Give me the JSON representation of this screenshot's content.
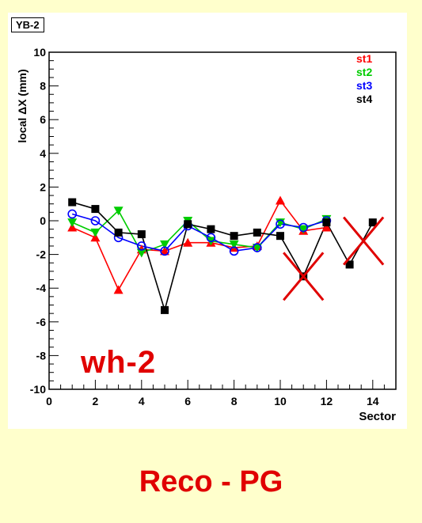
{
  "slide": {
    "caption": "Reco - PG",
    "annotation": "wh-2"
  },
  "chart_data": {
    "type": "line",
    "title": "YB-2",
    "xlabel": "Sector",
    "ylabel": "local ΔX (mm)",
    "xlim": [
      0,
      15
    ],
    "ylim": [
      -10,
      10
    ],
    "xticks": [
      0,
      2,
      4,
      6,
      8,
      10,
      12,
      14
    ],
    "yticks": [
      -10,
      -8,
      -6,
      -4,
      -2,
      0,
      2,
      4,
      6,
      8,
      10
    ],
    "legend_position": "top-right",
    "series": [
      {
        "name": "st1",
        "color": "#ff0000",
        "marker": "triangle-up",
        "marker_fill": true,
        "x": [
          1,
          2,
          3,
          4,
          5,
          6,
          7,
          8,
          9,
          10,
          11,
          12
        ],
        "y": [
          -0.4,
          -1.0,
          -4.1,
          -1.7,
          -1.8,
          -1.3,
          -1.3,
          -1.6,
          -1.5,
          1.2,
          -0.6,
          -0.4
        ]
      },
      {
        "name": "st2",
        "color": "#00cc00",
        "marker": "triangle-down",
        "marker_fill": true,
        "x": [
          1,
          2,
          3,
          4,
          5,
          6,
          7,
          8,
          9,
          10,
          11,
          12
        ],
        "y": [
          -0.1,
          -0.7,
          0.6,
          -1.9,
          -1.4,
          0.0,
          -1.2,
          -1.4,
          -1.6,
          -0.1,
          -0.5,
          0.1
        ]
      },
      {
        "name": "st3",
        "color": "#0000ff",
        "marker": "circle",
        "marker_fill": false,
        "x": [
          1,
          2,
          3,
          4,
          5,
          6,
          7,
          8,
          9,
          10,
          11,
          12
        ],
        "y": [
          0.4,
          0.0,
          -1.0,
          -1.5,
          -1.8,
          -0.3,
          -1.0,
          -1.8,
          -1.6,
          -0.2,
          -0.4,
          0.0
        ]
      },
      {
        "name": "st4",
        "color": "#000000",
        "marker": "square",
        "marker_fill": true,
        "x": [
          1,
          2,
          3,
          4,
          5,
          6,
          7,
          8,
          9,
          10,
          11,
          12,
          13,
          14
        ],
        "y": [
          1.1,
          0.7,
          -0.7,
          -0.8,
          -5.3,
          -0.2,
          -0.5,
          -0.9,
          -0.7,
          -0.9,
          -3.3,
          -0.1,
          -2.6,
          -0.1
        ]
      }
    ],
    "crossed_points": [
      {
        "x": 11,
        "y": -3.3
      },
      {
        "x": 13.6,
        "y": -1.2
      }
    ],
    "cross_color": "#e00000"
  }
}
